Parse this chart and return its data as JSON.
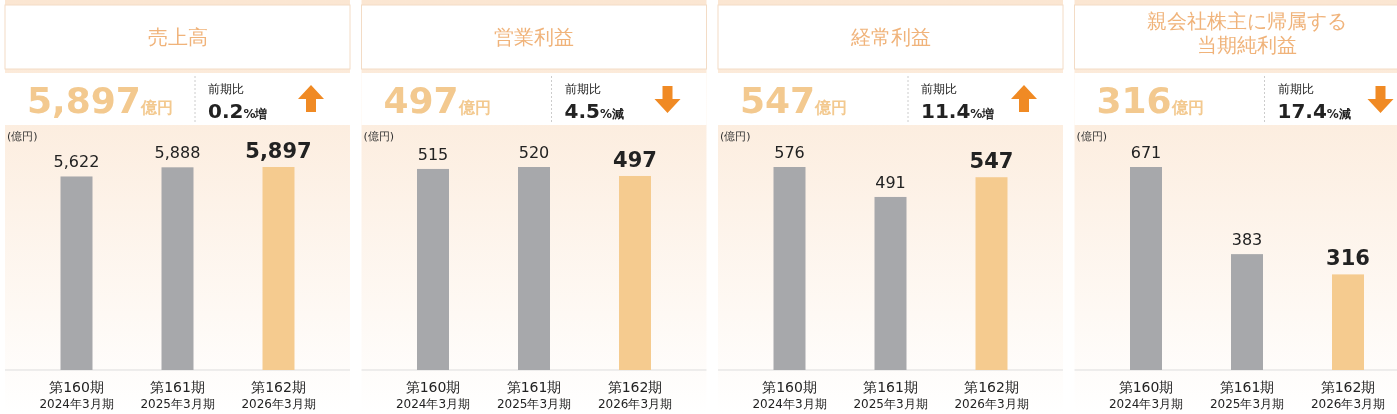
{
  "chart_data": [
    {
      "type": "bar",
      "title": "売上高",
      "categories": [
        "第160期\n2024年3月期",
        "第161期\n2025年3月期",
        "第162期\n2026年3月期"
      ],
      "values": [
        5622,
        5888,
        5897
      ],
      "colors": [
        "#a7a8ab",
        "#a7a8ab",
        "#f5cb8f"
      ],
      "value_labels": [
        "5,622",
        "5,888",
        "5,897"
      ],
      "annotations": [
        "5,897億円",
        "前期比",
        "0.2%増",
        "(億円)"
      ]
    },
    {
      "type": "bar",
      "title": "営業利益",
      "categories": [
        "第160期\n2024年3月期",
        "第161期\n2025年3月期",
        "第162期\n2026年3月期"
      ],
      "values": [
        515,
        520,
        497
      ],
      "colors": [
        "#a7a8ab",
        "#a7a8ab",
        "#f5cb8f"
      ],
      "data_labels": true,
      "annotations": [
        "497億円",
        "前期比",
        "4.5%減",
        "(億円)"
      ]
    },
    {
      "type": "bar",
      "title": "経常利益",
      "categories": [
        "第160期\n2024年3月期",
        "第161期\n2025年3月期",
        "第162期\n2026年3月期"
      ],
      "values": [
        576,
        491,
        547
      ],
      "colors": [
        "#a7a8ab",
        "#a7a8ab",
        "#f5cb8f"
      ],
      "data_labels": true,
      "annotations": [
        "547億円",
        "前期比",
        "11.4%増",
        "(億円)"
      ]
    },
    {
      "type": "bar",
      "title": "親会社株主に帰属する当期純利益",
      "categories": [
        "第160期\n2024年3月期",
        "第161期\n2025年3月期",
        "第162期\n2026年3月期"
      ],
      "values": [
        671,
        383,
        316
      ],
      "colors": [
        "#a7a8ab",
        "#a7a8ab",
        "#f5cb8f"
      ],
      "data_labels": true,
      "annotations": [
        "316億円",
        "前期比",
        "17.4%減",
        "(億円)"
      ]
    }
  ]
}
